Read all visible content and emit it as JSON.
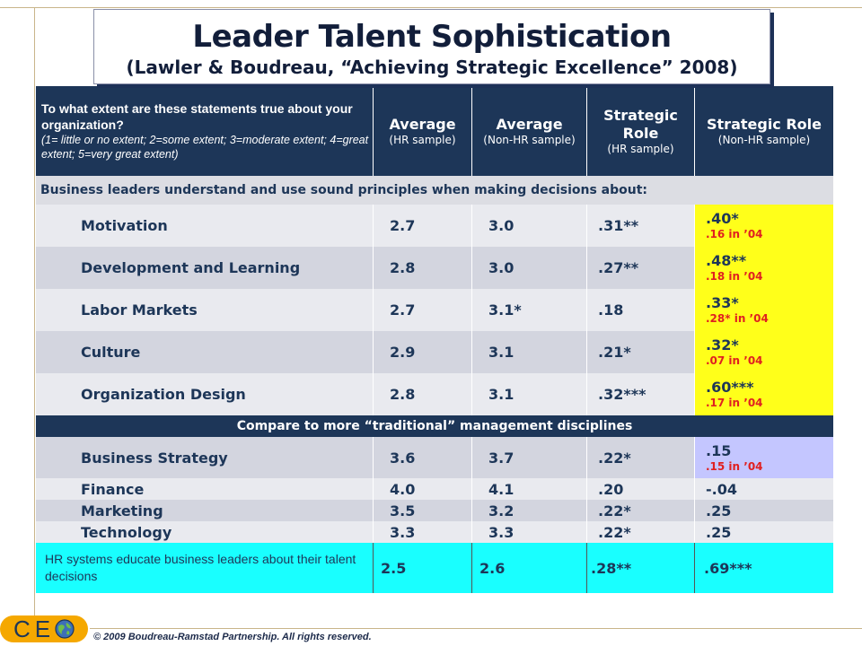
{
  "title": {
    "main": "Leader Talent Sophistication",
    "sub": "(Lawler & Boudreau, “Achieving Strategic Excellence” 2008)"
  },
  "header": {
    "question": "To what extent are these statements true about your organization?",
    "scale": "(1= little or no extent; 2=some extent; 3=moderate extent; 4=great extent; 5=very great extent)",
    "col2": {
      "main": "Average",
      "sub": "(HR sample)"
    },
    "col3": {
      "main": "Average",
      "sub": "(Non-HR sample)"
    },
    "col4": {
      "main": "Strategic Role",
      "sub": "(HR sample)"
    },
    "col5": {
      "main": "Strategic Role",
      "sub": "(Non-HR sample)"
    }
  },
  "section1": "Business leaders understand and use sound principles when making decisions about:",
  "rows1": [
    {
      "label": "Motivation",
      "hr": "2.7",
      "nonhr": "3.0",
      "role_hr": ".31**",
      "role_nonhr": ".40*",
      "note": ".16 in ’04"
    },
    {
      "label": "Development and Learning",
      "hr": "2.8",
      "nonhr": "3.0",
      "role_hr": ".27**",
      "role_nonhr": ".48**",
      "note": ".18 in ’04"
    },
    {
      "label": "Labor Markets",
      "hr": "2.7",
      "nonhr": "3.1*",
      "role_hr": ".18",
      "role_nonhr": ".33*",
      "note": ".28* in ’04"
    },
    {
      "label": "Culture",
      "hr": "2.9",
      "nonhr": "3.1",
      "role_hr": ".21*",
      "role_nonhr": ".32*",
      "note": ".07 in ’04"
    },
    {
      "label": "Organization Design",
      "hr": "2.8",
      "nonhr": "3.1",
      "role_hr": ".32***",
      "role_nonhr": ".60***",
      "note": ".17 in ’04"
    }
  ],
  "section2": "Compare to more “traditional” management disciplines",
  "strategy_row": {
    "label": "Business Strategy",
    "hr": "3.6",
    "nonhr": "3.7",
    "role_hr": ".22*",
    "role_nonhr": ".15",
    "note": ".15 in ’04"
  },
  "rows2": [
    {
      "label": "Finance",
      "hr": "4.0",
      "nonhr": "4.1",
      "role_hr": ".20",
      "role_nonhr": "-.04"
    },
    {
      "label": "Marketing",
      "hr": "3.5",
      "nonhr": "3.2",
      "role_hr": ".22*",
      "role_nonhr": ".25"
    },
    {
      "label": "Technology",
      "hr": "3.3",
      "nonhr": "3.3",
      "role_hr": ".22*",
      "role_nonhr": ".25"
    }
  ],
  "final_row": {
    "label": "HR systems educate business leaders about their talent decisions",
    "hr": "2.5",
    "nonhr": "2.6",
    "role_hr": ".28**",
    "role_nonhr": ".69***"
  },
  "footer": {
    "logo_c": "C",
    "logo_e": "E",
    "copyright": "© 2009 Boudreau-Ramstad Partnership.  All rights reserved."
  },
  "colors": {
    "navy": "#1d3658",
    "yellow": "#ffff1a",
    "lavender": "#c4c6ff",
    "cyan": "#19ffff",
    "note_red": "#e02020",
    "logo_orange": "#f5a800"
  },
  "icons": {
    "logo_o": "globe-icon"
  }
}
